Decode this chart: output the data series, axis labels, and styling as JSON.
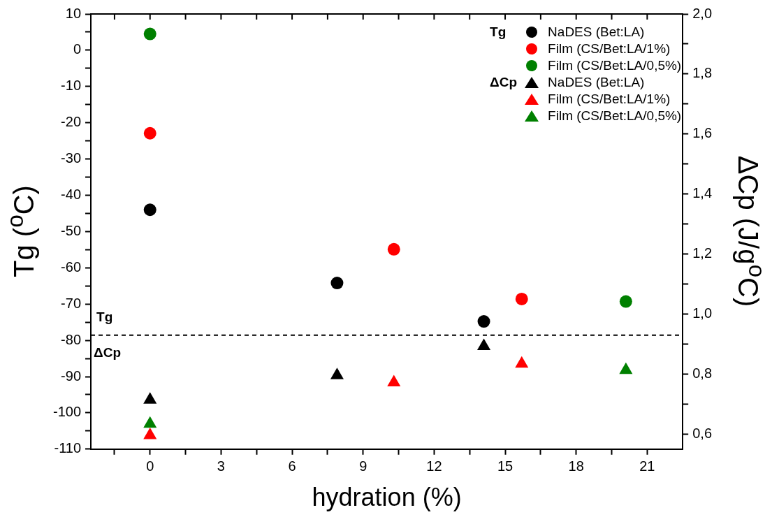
{
  "chart_data": {
    "type": "scatter",
    "xlabel": "hydration (%)",
    "ylabel": "Tg ($^{o}$C)",
    "y2label": "ΔCp (J/g$^{o}$C)",
    "xlim": [
      -2.5,
      22.5
    ],
    "xticks": [
      {
        "value": -1.5,
        "label": null
      },
      0,
      {
        "value": 1.5,
        "label": null
      },
      3,
      {
        "value": 4.5,
        "label": null
      },
      6,
      {
        "value": 7.5,
        "label": null
      },
      9,
      {
        "value": 10.5,
        "label": null
      },
      12,
      {
        "value": 13.5,
        "label": null
      },
      15,
      {
        "value": 16.5,
        "label": null
      },
      18,
      {
        "value": 19.5,
        "label": null
      },
      21
    ],
    "ylim": [
      -110,
      10
    ],
    "yticks": [
      -110,
      {
        "value": -105,
        "label": null
      },
      -100,
      {
        "value": -95,
        "label": null
      },
      -90,
      {
        "value": -85,
        "label": null
      },
      -80,
      {
        "value": -75,
        "label": null
      },
      -70,
      {
        "value": -65,
        "label": null
      },
      -60,
      {
        "value": -55,
        "label": null
      },
      -50,
      {
        "value": -45,
        "label": null
      },
      -40,
      {
        "value": -35,
        "label": null
      },
      -30,
      {
        "value": -25,
        "label": null
      },
      -20,
      {
        "value": -15,
        "label": null
      },
      -10,
      {
        "value": -5,
        "label": null
      },
      0,
      {
        "value": 5,
        "label": null
      },
      10
    ],
    "y2lim": [
      0.55,
      2.0
    ],
    "y2ticks": [
      {
        "value": 0.6,
        "label": "0,6"
      },
      {
        "value": 0.7,
        "label": null
      },
      {
        "value": 0.8,
        "label": "0,8"
      },
      {
        "value": 0.9,
        "label": null
      },
      {
        "value": 1.0,
        "label": "1,0"
      },
      {
        "value": 1.1,
        "label": null
      },
      {
        "value": 1.2,
        "label": "1,2"
      },
      {
        "value": 1.3,
        "label": null
      },
      {
        "value": 1.4,
        "label": "1,4"
      },
      {
        "value": 1.5,
        "label": null
      },
      {
        "value": 1.6,
        "label": "1,6"
      },
      {
        "value": 1.7,
        "label": null
      },
      {
        "value": 1.8,
        "label": "1,8"
      },
      {
        "value": 1.9,
        "label": null
      },
      {
        "value": 2.0,
        "label": "2,0"
      }
    ],
    "grid": false,
    "legend": "top right",
    "annotations": [
      "Tg",
      "ΔCp",
      "Tg",
      "ΔCp"
    ],
    "ref_lines": [
      {
        "axis": "y",
        "value": -78.6,
        "color": "#000000",
        "line_style": "dashed"
      }
    ],
    "series": [
      {
        "name": "NaDES (Bet:LA)",
        "color": "#000000",
        "marker": "circle",
        "x": [
          0,
          7.9,
          14.1
        ],
        "values": [
          -44.0,
          -64.2,
          -74.8
        ]
      },
      {
        "name": "Film (CS/Bet:LA/1%)",
        "color": "#ff0000",
        "marker": "circle",
        "x": [
          0,
          10.3,
          15.7
        ],
        "values": [
          -22.9,
          -54.9,
          -68.6
        ]
      },
      {
        "name": "Film (CS/Bet:LA/0,5%)",
        "color": "#008000",
        "marker": "circle",
        "x": [
          0,
          20.1
        ],
        "values": [
          4.5,
          -69.3
        ]
      },
      {
        "name": "NaDES (Bet:LA)",
        "color": "#000000",
        "marker": "triangle",
        "axis": "y2",
        "x": [
          0,
          7.9,
          14.1
        ],
        "values": [
          0.714,
          0.796,
          0.893
        ]
      },
      {
        "name": "Film (CS/Bet:LA/1%)",
        "color": "#ff0000",
        "marker": "triangle",
        "axis": "y2",
        "x": [
          0,
          10.3,
          15.7
        ],
        "values": [
          0.596,
          0.772,
          0.834
        ]
      },
      {
        "name": "Film (CS/Bet:LA/0,5%)",
        "color": "#008000",
        "marker": "triangle",
        "axis": "y2",
        "x": [
          0,
          20.1
        ],
        "values": [
          0.634,
          0.813
        ]
      }
    ]
  }
}
